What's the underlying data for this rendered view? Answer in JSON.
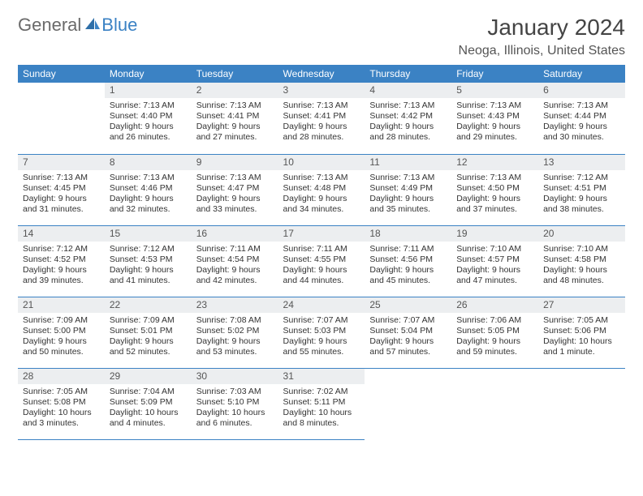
{
  "brand": {
    "part1": "General",
    "part2": "Blue"
  },
  "title": "January 2024",
  "location": "Neoga, Illinois, United States",
  "colors": {
    "header_bg": "#3b82c4",
    "header_text": "#ffffff",
    "daynum_bg": "#eceef0",
    "row_border": "#3b82c4",
    "text": "#333333"
  },
  "day_headers": [
    "Sunday",
    "Monday",
    "Tuesday",
    "Wednesday",
    "Thursday",
    "Friday",
    "Saturday"
  ],
  "weeks": [
    [
      {
        "n": "",
        "sr": "",
        "ss": "",
        "dl": ""
      },
      {
        "n": "1",
        "sr": "7:13 AM",
        "ss": "4:40 PM",
        "dl": "9 hours and 26 minutes."
      },
      {
        "n": "2",
        "sr": "7:13 AM",
        "ss": "4:41 PM",
        "dl": "9 hours and 27 minutes."
      },
      {
        "n": "3",
        "sr": "7:13 AM",
        "ss": "4:41 PM",
        "dl": "9 hours and 28 minutes."
      },
      {
        "n": "4",
        "sr": "7:13 AM",
        "ss": "4:42 PM",
        "dl": "9 hours and 28 minutes."
      },
      {
        "n": "5",
        "sr": "7:13 AM",
        "ss": "4:43 PM",
        "dl": "9 hours and 29 minutes."
      },
      {
        "n": "6",
        "sr": "7:13 AM",
        "ss": "4:44 PM",
        "dl": "9 hours and 30 minutes."
      }
    ],
    [
      {
        "n": "7",
        "sr": "7:13 AM",
        "ss": "4:45 PM",
        "dl": "9 hours and 31 minutes."
      },
      {
        "n": "8",
        "sr": "7:13 AM",
        "ss": "4:46 PM",
        "dl": "9 hours and 32 minutes."
      },
      {
        "n": "9",
        "sr": "7:13 AM",
        "ss": "4:47 PM",
        "dl": "9 hours and 33 minutes."
      },
      {
        "n": "10",
        "sr": "7:13 AM",
        "ss": "4:48 PM",
        "dl": "9 hours and 34 minutes."
      },
      {
        "n": "11",
        "sr": "7:13 AM",
        "ss": "4:49 PM",
        "dl": "9 hours and 35 minutes."
      },
      {
        "n": "12",
        "sr": "7:13 AM",
        "ss": "4:50 PM",
        "dl": "9 hours and 37 minutes."
      },
      {
        "n": "13",
        "sr": "7:12 AM",
        "ss": "4:51 PM",
        "dl": "9 hours and 38 minutes."
      }
    ],
    [
      {
        "n": "14",
        "sr": "7:12 AM",
        "ss": "4:52 PM",
        "dl": "9 hours and 39 minutes."
      },
      {
        "n": "15",
        "sr": "7:12 AM",
        "ss": "4:53 PM",
        "dl": "9 hours and 41 minutes."
      },
      {
        "n": "16",
        "sr": "7:11 AM",
        "ss": "4:54 PM",
        "dl": "9 hours and 42 minutes."
      },
      {
        "n": "17",
        "sr": "7:11 AM",
        "ss": "4:55 PM",
        "dl": "9 hours and 44 minutes."
      },
      {
        "n": "18",
        "sr": "7:11 AM",
        "ss": "4:56 PM",
        "dl": "9 hours and 45 minutes."
      },
      {
        "n": "19",
        "sr": "7:10 AM",
        "ss": "4:57 PM",
        "dl": "9 hours and 47 minutes."
      },
      {
        "n": "20",
        "sr": "7:10 AM",
        "ss": "4:58 PM",
        "dl": "9 hours and 48 minutes."
      }
    ],
    [
      {
        "n": "21",
        "sr": "7:09 AM",
        "ss": "5:00 PM",
        "dl": "9 hours and 50 minutes."
      },
      {
        "n": "22",
        "sr": "7:09 AM",
        "ss": "5:01 PM",
        "dl": "9 hours and 52 minutes."
      },
      {
        "n": "23",
        "sr": "7:08 AM",
        "ss": "5:02 PM",
        "dl": "9 hours and 53 minutes."
      },
      {
        "n": "24",
        "sr": "7:07 AM",
        "ss": "5:03 PM",
        "dl": "9 hours and 55 minutes."
      },
      {
        "n": "25",
        "sr": "7:07 AM",
        "ss": "5:04 PM",
        "dl": "9 hours and 57 minutes."
      },
      {
        "n": "26",
        "sr": "7:06 AM",
        "ss": "5:05 PM",
        "dl": "9 hours and 59 minutes."
      },
      {
        "n": "27",
        "sr": "7:05 AM",
        "ss": "5:06 PM",
        "dl": "10 hours and 1 minute."
      }
    ],
    [
      {
        "n": "28",
        "sr": "7:05 AM",
        "ss": "5:08 PM",
        "dl": "10 hours and 3 minutes."
      },
      {
        "n": "29",
        "sr": "7:04 AM",
        "ss": "5:09 PM",
        "dl": "10 hours and 4 minutes."
      },
      {
        "n": "30",
        "sr": "7:03 AM",
        "ss": "5:10 PM",
        "dl": "10 hours and 6 minutes."
      },
      {
        "n": "31",
        "sr": "7:02 AM",
        "ss": "5:11 PM",
        "dl": "10 hours and 8 minutes."
      },
      {
        "n": "",
        "sr": "",
        "ss": "",
        "dl": ""
      },
      {
        "n": "",
        "sr": "",
        "ss": "",
        "dl": ""
      },
      {
        "n": "",
        "sr": "",
        "ss": "",
        "dl": ""
      }
    ]
  ],
  "labels": {
    "sunrise": "Sunrise: ",
    "sunset": "Sunset: ",
    "daylight": "Daylight: "
  }
}
